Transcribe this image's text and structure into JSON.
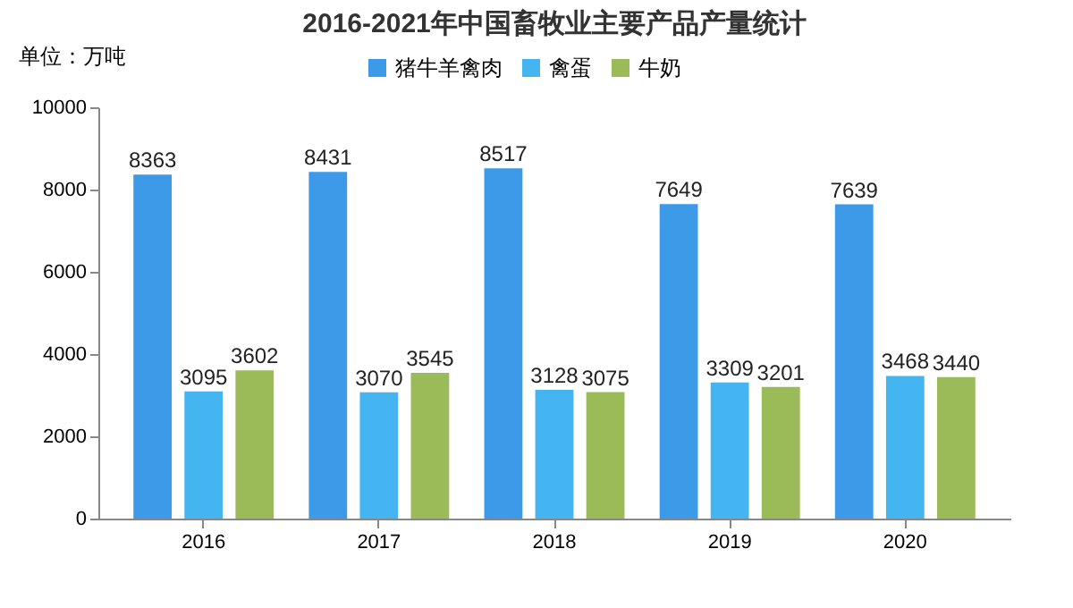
{
  "chart_data": {
    "type": "bar",
    "title": "2016-2021年中国畜牧业主要产品产量统计",
    "ylabel": "单位：万吨",
    "categories": [
      "2016",
      "2017",
      "2018",
      "2019",
      "2020"
    ],
    "series": [
      {
        "name": "猪牛羊禽肉",
        "color": "#3d9ae8",
        "values": [
          8363,
          8431,
          8517,
          7649,
          7639
        ]
      },
      {
        "name": "禽蛋",
        "color": "#45b5f2",
        "values": [
          3095,
          3070,
          3128,
          3309,
          3468
        ]
      },
      {
        "name": "牛奶",
        "color": "#9bbb59",
        "values": [
          3602,
          3545,
          3075,
          3201,
          3440
        ]
      }
    ],
    "ylim": [
      0,
      10000
    ],
    "yticks": [
      0,
      2000,
      4000,
      6000,
      8000,
      10000
    ],
    "grid": false,
    "legend": "top",
    "data_labels": true
  }
}
